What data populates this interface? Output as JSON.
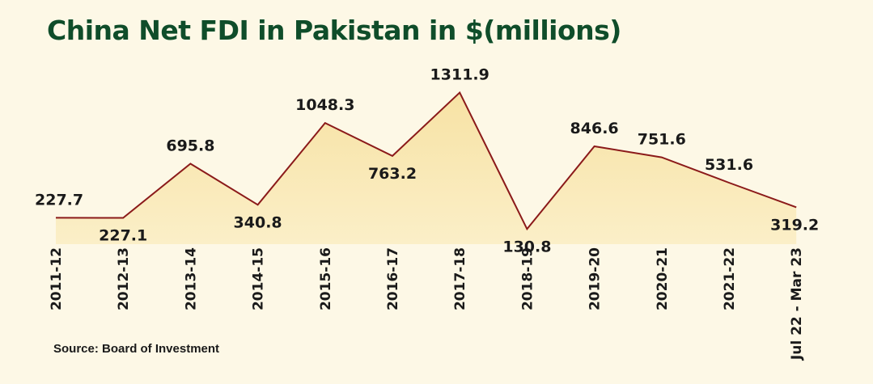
{
  "chart_data": {
    "type": "area",
    "title": "China Net FDI in Pakistan in $(millions)",
    "source": "Source: Board of Investment",
    "categories": [
      "2011-12",
      "2012-13",
      "2013-14",
      "2014-15",
      "2015-16",
      "2016-17",
      "2017-18",
      "2018-19",
      "2019-20",
      "2020-21",
      "2021-22",
      "Jul 22 - Mar 23"
    ],
    "values": [
      227.7,
      227.1,
      695.8,
      340.8,
      1048.3,
      763.2,
      1311.9,
      130.8,
      846.6,
      751.6,
      531.6,
      319.2
    ],
    "value_labels": [
      "227.7",
      "227.1",
      "695.8",
      "340.8",
      "1048.3",
      "763.2",
      "1311.9",
      "130.8",
      "846.6",
      "751.6",
      "531.6",
      "319.2"
    ],
    "label_position": [
      "above",
      "below",
      "above",
      "below",
      "above",
      "below",
      "above",
      "below",
      "above",
      "above",
      "above",
      "below"
    ],
    "ylim": [
      0,
      1420
    ],
    "grid": false,
    "legend": "none",
    "colors": {
      "fill": "#f8e7b2",
      "line": "#8b1a1a",
      "title": "#0f4d2a",
      "text": "#1a1a1a",
      "background": "#fdf8e6"
    }
  }
}
